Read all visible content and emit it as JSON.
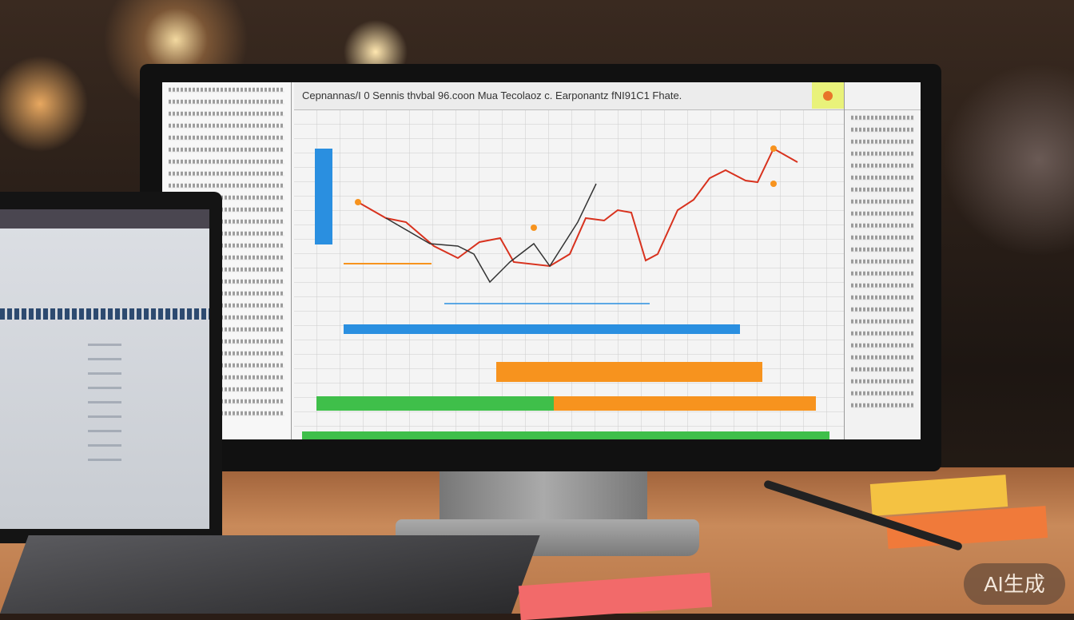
{
  "screen": {
    "title": "Cepnannas/I 0 Sennis thvbal 96.coon Mua Tecolaoz c. Earponantz fNI91C1 Fhate.",
    "title_icon": "search-icon",
    "accent_icon": "orange-circle-icon",
    "colors": {
      "blue": "#2a8fe0",
      "orange": "#f7931e",
      "green": "#3fbf4a",
      "red": "#d8321e"
    }
  },
  "badge": {
    "label": "AI生成"
  }
}
